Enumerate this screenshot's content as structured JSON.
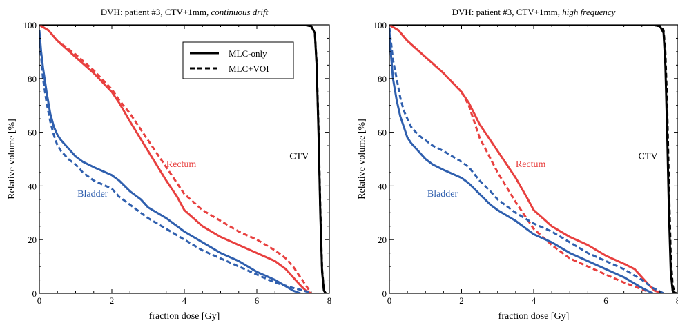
{
  "chart_data": [
    {
      "type": "line",
      "title_prefix": "DVH: patient #3, CTV+1mm, ",
      "title_italic": "continuous drift",
      "xlabel": "fraction dose [Gy]",
      "ylabel": "Relative volume [%]",
      "xlim": [
        0,
        8
      ],
      "ylim": [
        0,
        100
      ],
      "xticks": [
        0,
        2,
        4,
        6,
        8
      ],
      "yticks": [
        0,
        20,
        40,
        60,
        80,
        100
      ],
      "grid": false,
      "legend": {
        "placement": "top-right",
        "entries": [
          {
            "label": "MLC-only",
            "style": "solid"
          },
          {
            "label": "MLC+VOI",
            "style": "dashed"
          }
        ]
      },
      "annotations": [
        {
          "text": "Rectum",
          "x": 3.5,
          "y": 47,
          "color": "#e8403f"
        },
        {
          "text": "Bladder",
          "x": 1.05,
          "y": 36,
          "color": "#2f5fae"
        },
        {
          "text": "CTV",
          "x": 6.9,
          "y": 50,
          "color": "#000000"
        }
      ],
      "series": [
        {
          "structure": "CTV",
          "style": "solid",
          "color": "#000000",
          "x": [
            0,
            7.3,
            7.5,
            7.6,
            7.65,
            7.7,
            7.75,
            7.8,
            7.85,
            7.9
          ],
          "y": [
            100,
            100,
            99.5,
            97,
            85,
            60,
            30,
            8,
            1,
            0
          ]
        },
        {
          "structure": "CTV",
          "style": "dashed",
          "color": "#000000",
          "x": [
            0,
            7.3,
            7.5,
            7.6,
            7.65,
            7.7,
            7.75,
            7.8,
            7.85,
            7.9
          ],
          "y": [
            100,
            100,
            99.5,
            97,
            86,
            62,
            32,
            9,
            1,
            0
          ]
        },
        {
          "structure": "Rectum",
          "style": "solid",
          "color": "#e8403f",
          "x": [
            0,
            0.25,
            0.5,
            1.0,
            1.5,
            2.0,
            2.2,
            2.5,
            3.0,
            3.5,
            3.8,
            4.0,
            4.5,
            5.0,
            5.5,
            6.0,
            6.5,
            6.8,
            7.0,
            7.2,
            7.35,
            7.45,
            7.5
          ],
          "y": [
            100,
            98,
            94,
            88,
            82,
            75,
            71,
            64,
            53,
            42,
            36,
            31,
            25,
            21,
            18,
            15,
            12,
            9,
            6,
            3,
            1,
            0.3,
            0
          ]
        },
        {
          "structure": "Rectum",
          "style": "dashed",
          "color": "#e8403f",
          "x": [
            0,
            0.25,
            0.5,
            1.0,
            1.5,
            2.0,
            2.2,
            2.5,
            3.0,
            3.5,
            3.8,
            4.0,
            4.5,
            5.0,
            5.5,
            6.0,
            6.5,
            6.8,
            7.0,
            7.2,
            7.35,
            7.45,
            7.5
          ],
          "y": [
            100,
            98,
            94,
            89,
            83,
            76,
            72,
            67,
            57,
            47,
            41,
            37,
            31,
            27,
            23,
            20,
            16,
            13,
            10,
            6,
            3,
            1,
            0
          ]
        },
        {
          "structure": "Bladder",
          "style": "solid",
          "color": "#2f5fae",
          "x": [
            0,
            0.05,
            0.1,
            0.2,
            0.3,
            0.4,
            0.5,
            0.6,
            0.8,
            1.0,
            1.2,
            1.5,
            2.0,
            2.2,
            2.5,
            2.8,
            3.0,
            3.5,
            4.0,
            4.5,
            5.0,
            5.5,
            6.0,
            6.5,
            7.0,
            7.2
          ],
          "y": [
            98,
            90,
            84,
            75,
            67,
            62,
            59,
            57,
            54,
            51,
            49,
            47,
            44,
            42,
            38,
            35,
            32,
            28,
            23,
            19,
            15,
            12,
            8,
            5,
            1,
            0
          ]
        },
        {
          "structure": "Bladder",
          "style": "dashed",
          "color": "#2f5fae",
          "x": [
            0,
            0.05,
            0.1,
            0.2,
            0.3,
            0.4,
            0.5,
            0.6,
            0.8,
            1.0,
            1.2,
            1.5,
            2.0,
            2.2,
            2.5,
            2.8,
            3.0,
            3.5,
            4.0,
            4.5,
            5.0,
            5.5,
            6.0,
            6.5,
            7.0,
            7.3,
            7.5
          ],
          "y": [
            96,
            88,
            80,
            71,
            64,
            59,
            55,
            53,
            50,
            48,
            45,
            42,
            39,
            36,
            33,
            30,
            28,
            24,
            20,
            16,
            13,
            10,
            7,
            4,
            2,
            1,
            0
          ]
        }
      ]
    },
    {
      "type": "line",
      "title_prefix": "DVH: patient #3, CTV+1mm, ",
      "title_italic": "high frequency",
      "xlabel": "fraction dose [Gy]",
      "ylabel": "Relative volume [%]",
      "xlim": [
        0,
        8
      ],
      "ylim": [
        0,
        100
      ],
      "xticks": [
        0,
        2,
        4,
        6,
        8
      ],
      "yticks": [
        0,
        20,
        40,
        60,
        80,
        100
      ],
      "grid": false,
      "annotations": [
        {
          "text": "Rectum",
          "x": 3.5,
          "y": 47,
          "color": "#e8403f"
        },
        {
          "text": "Bladder",
          "x": 1.05,
          "y": 36,
          "color": "#2f5fae"
        },
        {
          "text": "CTV",
          "x": 6.9,
          "y": 50,
          "color": "#000000"
        }
      ],
      "series": [
        {
          "structure": "CTV",
          "style": "solid",
          "color": "#000000",
          "x": [
            0,
            7.3,
            7.5,
            7.6,
            7.65,
            7.7,
            7.75,
            7.8,
            7.85,
            7.9
          ],
          "y": [
            100,
            100,
            99.5,
            97,
            85,
            60,
            30,
            8,
            1,
            0
          ]
        },
        {
          "structure": "CTV",
          "style": "dashed",
          "color": "#000000",
          "x": [
            0,
            7.3,
            7.5,
            7.6,
            7.65,
            7.7,
            7.75,
            7.8,
            7.85,
            7.9,
            7.95
          ],
          "y": [
            100,
            100,
            99.5,
            98,
            90,
            70,
            40,
            14,
            3,
            0.5,
            0
          ]
        },
        {
          "structure": "Rectum",
          "style": "solid",
          "color": "#e8403f",
          "x": [
            0,
            0.25,
            0.5,
            1.0,
            1.5,
            2.0,
            2.2,
            2.5,
            3.0,
            3.5,
            3.8,
            4.0,
            4.5,
            5.0,
            5.5,
            6.0,
            6.5,
            6.8,
            7.0,
            7.2,
            7.35,
            7.5,
            7.6
          ],
          "y": [
            100,
            98,
            94,
            88,
            82,
            75,
            71,
            63,
            53,
            43,
            36,
            31,
            25,
            21,
            18,
            14,
            11,
            9,
            6,
            3,
            1,
            0.3,
            0
          ]
        },
        {
          "structure": "Rectum",
          "style": "dashed",
          "color": "#e8403f",
          "x": [
            0,
            0.25,
            0.5,
            1.0,
            1.5,
            2.0,
            2.2,
            2.5,
            3.0,
            3.5,
            3.8,
            4.0,
            4.5,
            5.0,
            5.5,
            6.0,
            6.5,
            6.8,
            7.0,
            7.2,
            7.3
          ],
          "y": [
            100,
            98,
            94,
            88,
            82,
            75,
            70,
            58,
            45,
            34,
            28,
            24,
            18,
            13,
            10,
            7,
            4,
            2.5,
            1.5,
            0.5,
            0
          ]
        },
        {
          "structure": "Bladder",
          "style": "solid",
          "color": "#2f5fae",
          "x": [
            0,
            0.05,
            0.1,
            0.2,
            0.3,
            0.4,
            0.5,
            0.6,
            0.8,
            1.0,
            1.2,
            1.5,
            2.0,
            2.2,
            2.5,
            2.8,
            3.0,
            3.5,
            4.0,
            4.5,
            5.0,
            5.5,
            6.0,
            6.5,
            7.0,
            7.3
          ],
          "y": [
            98,
            88,
            80,
            72,
            66,
            62,
            58,
            56,
            53,
            50,
            48,
            46,
            43,
            41,
            37,
            33,
            31,
            27,
            22,
            19,
            15,
            12,
            9,
            6,
            2,
            0
          ]
        },
        {
          "structure": "Bladder",
          "style": "dashed",
          "color": "#2f5fae",
          "x": [
            0,
            0.05,
            0.1,
            0.2,
            0.3,
            0.4,
            0.5,
            0.6,
            0.8,
            1.0,
            1.2,
            1.5,
            2.0,
            2.2,
            2.5,
            2.8,
            3.0,
            3.5,
            4.0,
            4.5,
            5.0,
            5.5,
            6.0,
            6.5,
            7.0,
            7.3,
            7.6
          ],
          "y": [
            99,
            93,
            87,
            80,
            73,
            68,
            65,
            62,
            59,
            57,
            55,
            53,
            49,
            47,
            42,
            38,
            35,
            30,
            26,
            23,
            19,
            15,
            12,
            9,
            5,
            2,
            0
          ]
        }
      ]
    }
  ]
}
